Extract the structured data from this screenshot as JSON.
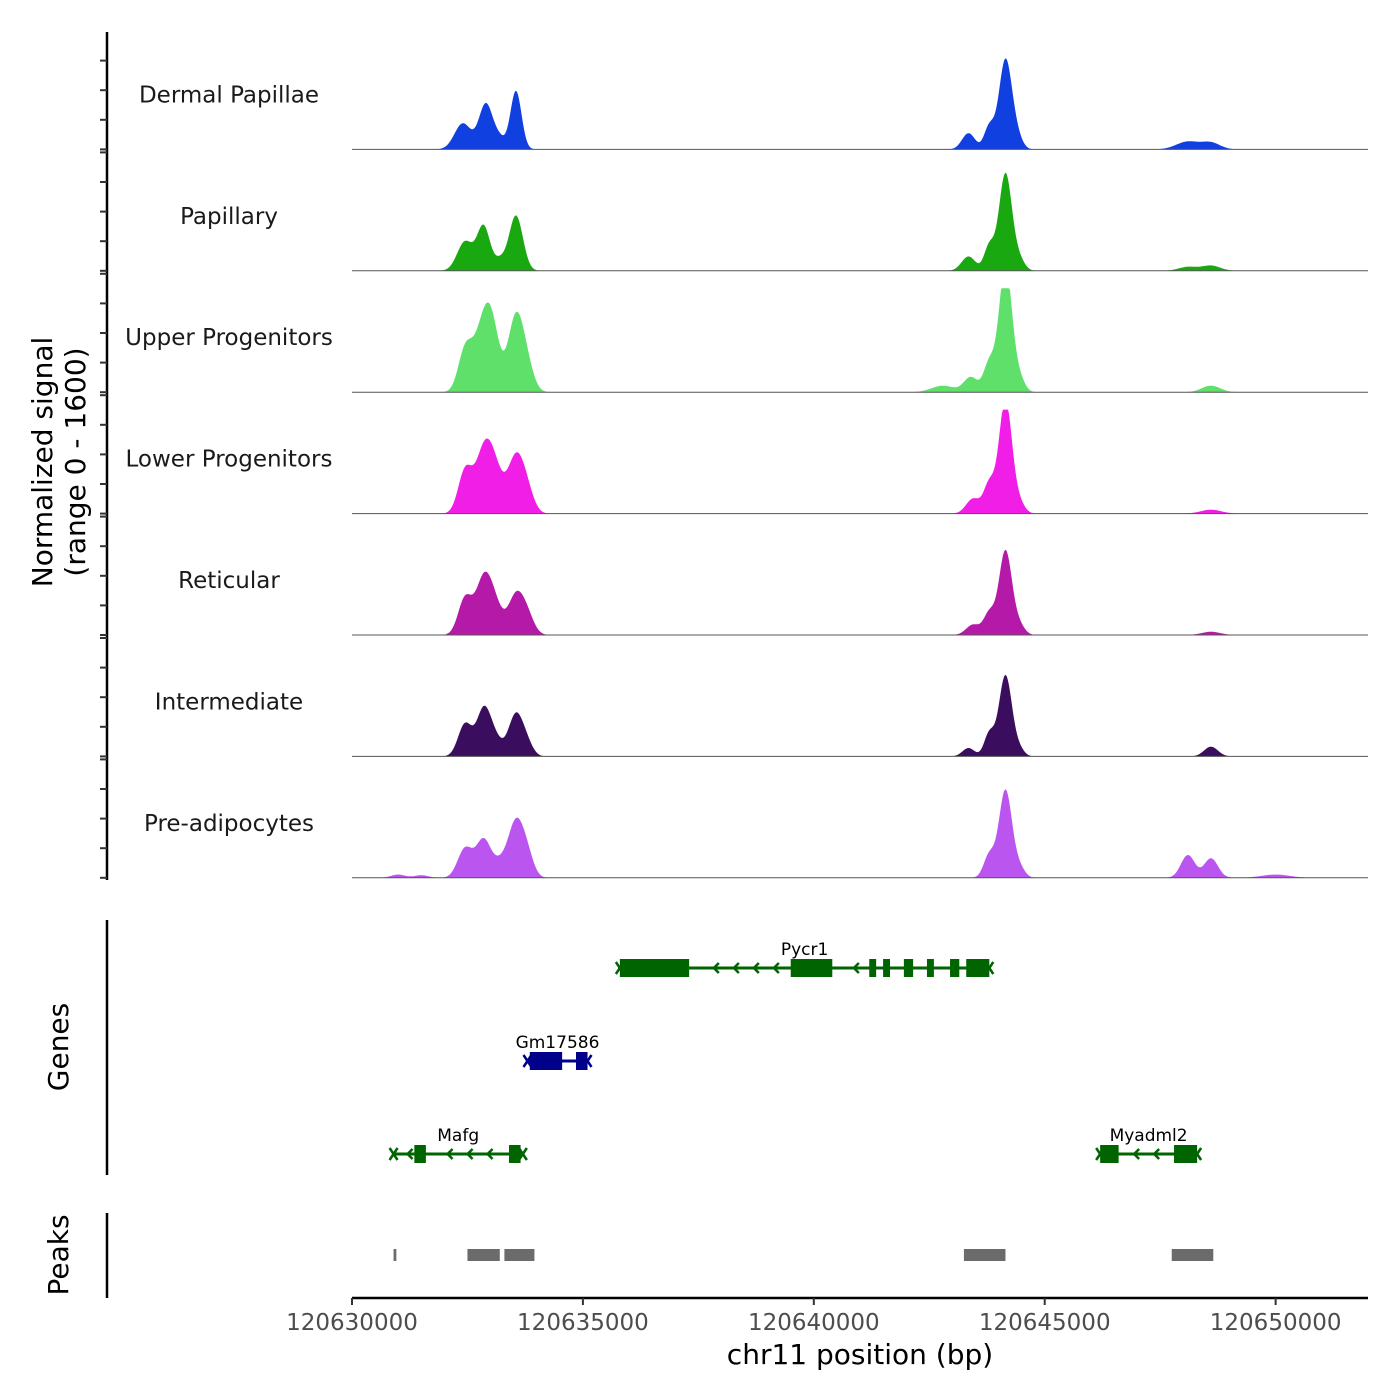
{
  "chart_data": {
    "type": "area",
    "title": "",
    "chromosome": "chr11",
    "xlabel": "chr11 position (bp)",
    "ylabel": "Normalized signal",
    "ylabel_range": "(range 0 - 1600)",
    "xlim": [
      120630000,
      120652000
    ],
    "ylim": [
      0,
      1600
    ],
    "xticks": [
      120630000,
      120635000,
      120640000,
      120645000,
      120650000
    ],
    "xtick_labels": [
      "120630000",
      "120635000",
      "120640000",
      "120645000",
      "120650000"
    ],
    "series": [
      {
        "name": "Dermal Papillae",
        "color": "#1040e0",
        "peaks": [
          [
            120632400,
            400,
            180
          ],
          [
            120632900,
            700,
            150
          ],
          [
            120633550,
            900,
            120
          ],
          [
            120633200,
            150,
            120
          ],
          [
            120643350,
            250,
            140
          ],
          [
            120643800,
            350,
            110
          ],
          [
            120644150,
            1380,
            140
          ],
          [
            120644400,
            170,
            120
          ],
          [
            120648100,
            120,
            250
          ],
          [
            120648600,
            100,
            200
          ]
        ]
      },
      {
        "name": "Papillary",
        "color": "#19a80f",
        "peaks": [
          [
            120632450,
            450,
            170
          ],
          [
            120632850,
            680,
            140
          ],
          [
            120633200,
            150,
            120
          ],
          [
            120633550,
            850,
            150
          ],
          [
            120643350,
            220,
            150
          ],
          [
            120643800,
            380,
            110
          ],
          [
            120644150,
            1500,
            140
          ],
          [
            120644450,
            160,
            120
          ],
          [
            120648100,
            60,
            200
          ],
          [
            120648600,
            80,
            200
          ]
        ]
      },
      {
        "name": "Upper Progenitors",
        "color": "#5fe06a",
        "peaks": [
          [
            120632450,
            620,
            150
          ],
          [
            120632850,
            1000,
            200
          ],
          [
            120633050,
            600,
            160
          ],
          [
            120633550,
            1150,
            170
          ],
          [
            120633800,
            300,
            150
          ],
          [
            120642800,
            100,
            250
          ],
          [
            120643400,
            230,
            150
          ],
          [
            120643800,
            450,
            120
          ],
          [
            120644150,
            1950,
            140
          ],
          [
            120644450,
            200,
            120
          ],
          [
            120648600,
            100,
            200
          ]
        ]
      },
      {
        "name": "Lower Progenitors",
        "color": "#f01ee6",
        "peaks": [
          [
            120632450,
            650,
            150
          ],
          [
            120632850,
            900,
            180
          ],
          [
            120633100,
            550,
            170
          ],
          [
            120633550,
            860,
            180
          ],
          [
            120633800,
            250,
            150
          ],
          [
            120643450,
            230,
            150
          ],
          [
            120643800,
            450,
            120
          ],
          [
            120644150,
            1750,
            140
          ],
          [
            120644450,
            150,
            120
          ],
          [
            120648600,
            60,
            220
          ]
        ]
      },
      {
        "name": "Reticular",
        "color": "#b419a8",
        "peaks": [
          [
            120632450,
            560,
            150
          ],
          [
            120632850,
            830,
            170
          ],
          [
            120633100,
            380,
            160
          ],
          [
            120633550,
            600,
            170
          ],
          [
            120633800,
            250,
            150
          ],
          [
            120643450,
            160,
            150
          ],
          [
            120643800,
            330,
            120
          ],
          [
            120644150,
            1300,
            140
          ],
          [
            120644450,
            140,
            120
          ],
          [
            120648600,
            50,
            200
          ]
        ]
      },
      {
        "name": "Intermediate",
        "color": "#3a0d5e",
        "peaks": [
          [
            120632450,
            500,
            150
          ],
          [
            120632850,
            700,
            150
          ],
          [
            120633100,
            250,
            150
          ],
          [
            120633550,
            650,
            160
          ],
          [
            120633800,
            150,
            130
          ],
          [
            120643350,
            130,
            130
          ],
          [
            120643800,
            350,
            110
          ],
          [
            120644150,
            1250,
            140
          ],
          [
            120644450,
            100,
            110
          ],
          [
            120648600,
            150,
            150
          ]
        ]
      },
      {
        "name": "Pre-adipocytes",
        "color": "#bb55f0",
        "peaks": [
          [
            120631000,
            50,
            150
          ],
          [
            120631500,
            40,
            150
          ],
          [
            120632450,
            450,
            160
          ],
          [
            120632850,
            580,
            160
          ],
          [
            120633200,
            200,
            150
          ],
          [
            120633550,
            850,
            170
          ],
          [
            120633800,
            280,
            140
          ],
          [
            120643800,
            350,
            120
          ],
          [
            120644150,
            1350,
            140
          ],
          [
            120644450,
            150,
            120
          ],
          [
            120648100,
            350,
            150
          ],
          [
            120648600,
            300,
            150
          ],
          [
            120650000,
            50,
            300
          ]
        ]
      }
    ],
    "genes": [
      {
        "name": "Pycr1",
        "strand": "-",
        "color": "#006400",
        "row": 0,
        "start": 120635800,
        "end": 120643800,
        "exons": [
          [
            120635800,
            120637300
          ],
          [
            120639500,
            120640400
          ],
          [
            120641200,
            120641350
          ],
          [
            120641500,
            120641650
          ],
          [
            120641950,
            120642150
          ],
          [
            120642450,
            120642600
          ],
          [
            120642950,
            120643150
          ],
          [
            120643300,
            120643800
          ]
        ]
      },
      {
        "name": "Gm17586",
        "strand": "+",
        "color": "#00008b",
        "row": 1,
        "start": 120633800,
        "end": 120635100,
        "exons": [
          [
            120633850,
            120634550
          ],
          [
            120634850,
            120635100
          ]
        ]
      },
      {
        "name": "Mafg",
        "strand": "-",
        "color": "#006400",
        "row": 2,
        "start": 120630900,
        "end": 120633700,
        "exons": [
          [
            120631350,
            120631600
          ],
          [
            120633400,
            120633650
          ]
        ]
      },
      {
        "name": "Myadml2",
        "strand": "-",
        "color": "#006400",
        "row": 2,
        "start": 120646200,
        "end": 120648300,
        "exons": [
          [
            120646200,
            120646600
          ],
          [
            120647800,
            120648300
          ]
        ]
      }
    ],
    "peaks": [
      {
        "start": 120630900,
        "end": 120630960
      },
      {
        "start": 120632500,
        "end": 120633200
      },
      {
        "start": 120633300,
        "end": 120633950
      },
      {
        "start": 120643250,
        "end": 120644150
      },
      {
        "start": 120647750,
        "end": 120648650
      }
    ],
    "track_titles": {
      "genes": "Genes",
      "peaks": "Peaks"
    }
  }
}
